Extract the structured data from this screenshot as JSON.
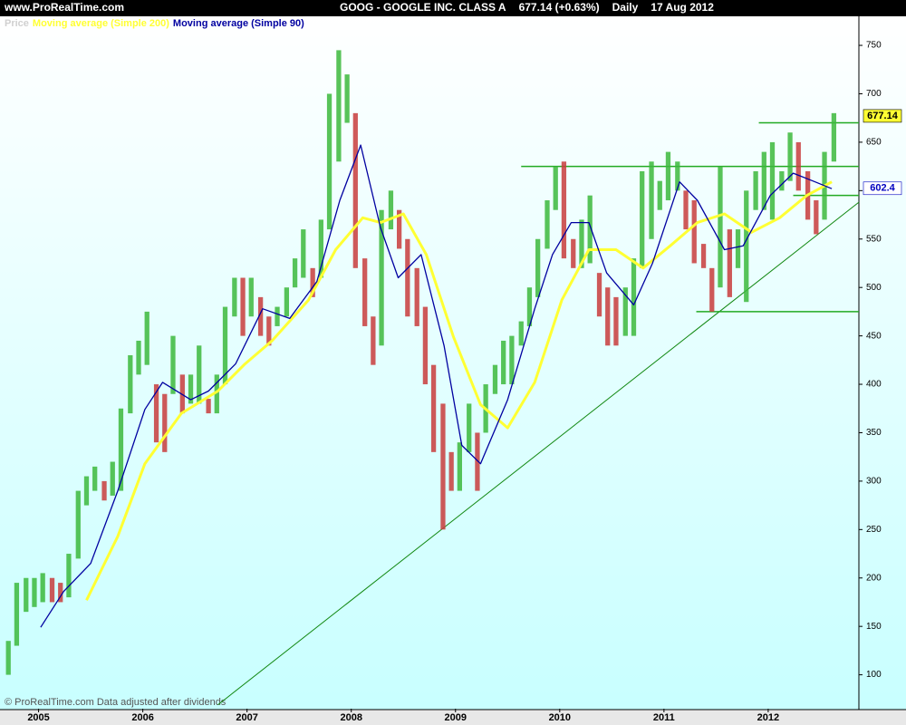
{
  "header": {
    "site": "www.ProRealTime.com",
    "title": "GOOG - GOOGLE INC. CLASS A",
    "quote": "677.14 (+0.63%)",
    "interval": "Daily",
    "date": "17 Aug 2012"
  },
  "footer": "© ProRealTime.com  Data adjusted after dividends",
  "chart_data": {
    "type": "financial",
    "xlim": [
      2004.63,
      2012.87
    ],
    "xticks": [
      2005,
      2006,
      2007,
      2008,
      2009,
      2010,
      2011,
      2012
    ],
    "ylim": [
      65,
      780
    ],
    "yticks": [
      100,
      150,
      200,
      250,
      300,
      350,
      400,
      450,
      500,
      550,
      600,
      650,
      700,
      750
    ],
    "series": [
      {
        "name": "Price",
        "kind": "range",
        "color": "#d0d0d0",
        "up_color": "#3cb83c",
        "down_color": "#c83c3c",
        "x": [
          2004.71,
          2004.79,
          2004.88,
          2004.96,
          2005.04,
          2005.13,
          2005.21,
          2005.29,
          2005.38,
          2005.46,
          2005.54,
          2005.63,
          2005.71,
          2005.79,
          2005.88,
          2005.96,
          2006.04,
          2006.13,
          2006.21,
          2006.29,
          2006.38,
          2006.46,
          2006.54,
          2006.63,
          2006.71,
          2006.79,
          2006.88,
          2006.96,
          2007.04,
          2007.13,
          2007.21,
          2007.29,
          2007.38,
          2007.46,
          2007.54,
          2007.63,
          2007.71,
          2007.79,
          2007.88,
          2007.96,
          2008.04,
          2008.13,
          2008.21,
          2008.29,
          2008.38,
          2008.46,
          2008.54,
          2008.63,
          2008.71,
          2008.79,
          2008.88,
          2008.96,
          2009.04,
          2009.13,
          2009.21,
          2009.29,
          2009.38,
          2009.46,
          2009.54,
          2009.63,
          2009.71,
          2009.79,
          2009.88,
          2009.96,
          2010.04,
          2010.13,
          2010.21,
          2010.29,
          2010.38,
          2010.46,
          2010.54,
          2010.63,
          2010.71,
          2010.79,
          2010.88,
          2010.96,
          2011.04,
          2011.13,
          2011.21,
          2011.29,
          2011.38,
          2011.46,
          2011.54,
          2011.63,
          2011.71,
          2011.79,
          2011.88,
          2011.96,
          2012.04,
          2012.13,
          2012.21,
          2012.29,
          2012.38,
          2012.46,
          2012.54,
          2012.63
        ],
        "low": [
          100,
          130,
          165,
          170,
          175,
          175,
          175,
          180,
          220,
          275,
          290,
          280,
          285,
          290,
          370,
          410,
          420,
          340,
          330,
          390,
          370,
          380,
          380,
          370,
          370,
          400,
          470,
          450,
          470,
          450,
          440,
          460,
          470,
          500,
          510,
          490,
          510,
          560,
          630,
          670,
          520,
          460,
          420,
          440,
          560,
          540,
          470,
          460,
          400,
          330,
          250,
          290,
          290,
          330,
          290,
          350,
          390,
          400,
          400,
          440,
          460,
          490,
          540,
          580,
          530,
          520,
          520,
          525,
          470,
          440,
          440,
          450,
          450,
          520,
          550,
          580,
          590,
          600,
          560,
          525,
          520,
          475,
          500,
          490,
          520,
          485,
          580,
          580,
          570,
          600,
          610,
          600,
          570,
          555,
          570,
          630
        ],
        "high": [
          135,
          195,
          200,
          200,
          205,
          200,
          195,
          225,
          290,
          305,
          315,
          300,
          320,
          375,
          430,
          445,
          475,
          400,
          390,
          450,
          410,
          410,
          440,
          385,
          410,
          480,
          510,
          510,
          510,
          490,
          470,
          480,
          500,
          530,
          560,
          520,
          570,
          700,
          745,
          720,
          680,
          530,
          470,
          580,
          600,
          580,
          550,
          520,
          480,
          420,
          380,
          330,
          340,
          380,
          350,
          400,
          420,
          445,
          450,
          465,
          500,
          550,
          590,
          625,
          630,
          550,
          570,
          595,
          515,
          500,
          490,
          500,
          530,
          620,
          630,
          610,
          640,
          630,
          600,
          590,
          545,
          520,
          625,
          560,
          560,
          600,
          620,
          640,
          650,
          620,
          660,
          650,
          620,
          590,
          640,
          680
        ]
      },
      {
        "name": "Moving average (Simple 200)",
        "kind": "line",
        "color": "#ffff33",
        "x": [
          2005.46,
          2005.76,
          2006.02,
          2006.37,
          2006.72,
          2006.98,
          2007.24,
          2007.59,
          2007.85,
          2008.11,
          2008.28,
          2008.5,
          2008.72,
          2008.98,
          2009.24,
          2009.5,
          2009.76,
          2010.02,
          2010.28,
          2010.54,
          2010.8,
          2011.06,
          2011.32,
          2011.58,
          2011.84,
          2012.11,
          2012.37,
          2012.61
        ],
        "values": [
          177,
          243,
          318,
          370,
          393,
          421,
          445,
          487,
          539,
          572,
          567,
          576,
          534,
          449,
          379,
          355,
          402,
          487,
          539,
          539,
          520,
          543,
          567,
          576,
          557,
          572,
          595,
          609
        ]
      },
      {
        "name": "Moving average (Simple 90)",
        "kind": "line",
        "color": "#0000a0",
        "x": [
          2005.02,
          2005.24,
          2005.5,
          2005.76,
          2006.02,
          2006.19,
          2006.46,
          2006.63,
          2006.89,
          2007.15,
          2007.41,
          2007.67,
          2007.89,
          2008.09,
          2008.28,
          2008.45,
          2008.67,
          2008.89,
          2009.06,
          2009.24,
          2009.5,
          2009.76,
          2009.93,
          2010.11,
          2010.28,
          2010.45,
          2010.71,
          2010.89,
          2011.15,
          2011.32,
          2011.58,
          2011.76,
          2012.02,
          2012.24,
          2012.45,
          2012.61
        ],
        "values": [
          149,
          186,
          215,
          290,
          374,
          402,
          384,
          393,
          421,
          478,
          468,
          506,
          590,
          647,
          562,
          510,
          534,
          440,
          337,
          318,
          384,
          478,
          534,
          567,
          567,
          515,
          482,
          525,
          609,
          590,
          539,
          543,
          595,
          618,
          609,
          602
        ]
      }
    ],
    "levels": [
      {
        "value": 670,
        "x_start": 2011.91,
        "color": "#22aa22"
      },
      {
        "value": 625,
        "x_start": 2009.63,
        "color": "#22aa22"
      },
      {
        "value": 595,
        "x_start": 2012.24,
        "color": "#22aa22"
      },
      {
        "value": 475,
        "x_start": 2011.31,
        "color": "#22aa22"
      }
    ],
    "trend_line": {
      "x": [
        2006.72,
        2012.87
      ],
      "values": [
        69,
        588
      ],
      "color": "#118811"
    },
    "last_labels": [
      {
        "value": 677.14,
        "fill": "#ffff33",
        "text_color": "#000000"
      },
      {
        "value": 602.4,
        "fill": "#ffffff",
        "text_color": "#0000c0"
      }
    ]
  }
}
